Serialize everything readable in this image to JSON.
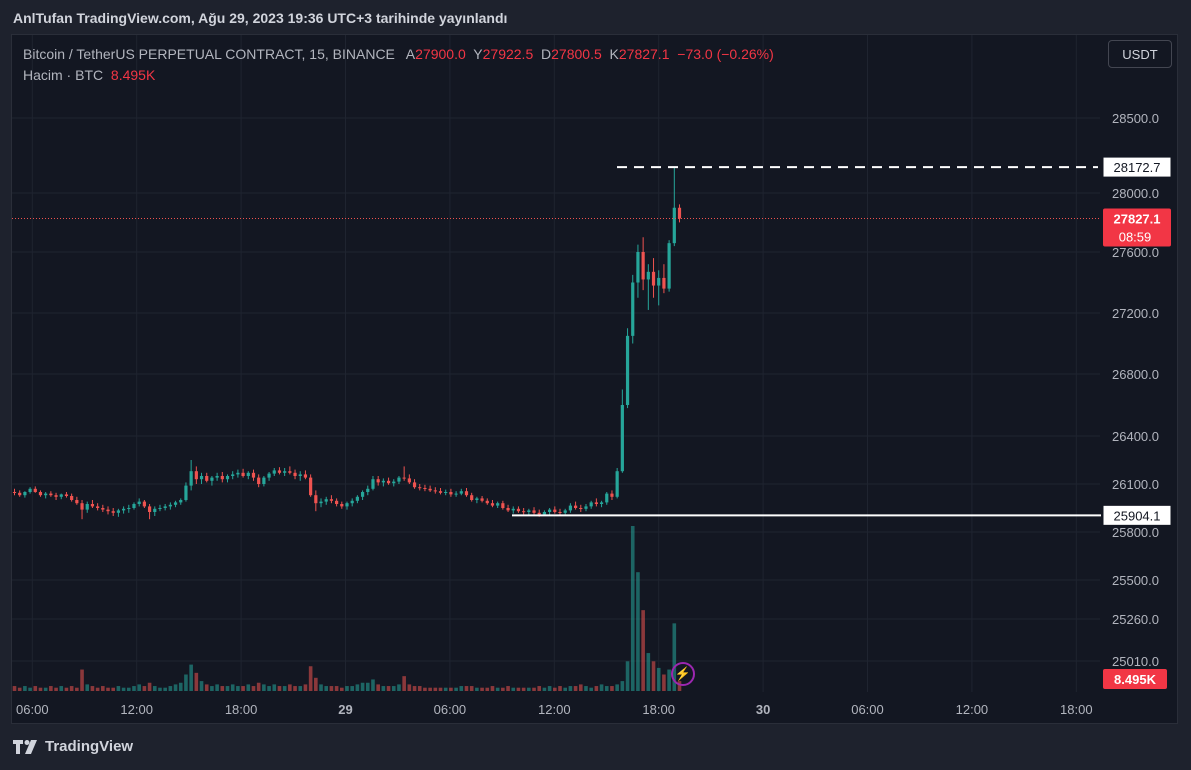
{
  "header": {
    "publisher": "AnlTufan TradingView.com, Ağu 29, 2023 19:36 UTC+3 tarihinde yayınlandı"
  },
  "legend": {
    "symbol": "Bitcoin / TetherUS PERPETUAL CONTRACT, 15, BINANCE",
    "o_label": "A",
    "o_value": "27900.0",
    "h_label": "Y",
    "h_value": "27922.5",
    "l_label": "D",
    "l_value": "27800.5",
    "c_label": "K",
    "c_value": "27827.1",
    "change": "−73.0 (−0.26%)",
    "volume_label": "Hacim · BTC",
    "volume_value": "8.495K"
  },
  "currency_button": "USDT",
  "footer": {
    "brand": "TradingView"
  },
  "colors": {
    "up": "#26a69a",
    "down": "#ef5350",
    "background": "#131722",
    "grid": "#1f2430"
  },
  "icons": [
    "tradingview-logo-icon",
    "lightning-icon"
  ],
  "chart_data": {
    "type": "candlestick",
    "symbol": "BTCUSDT.P",
    "interval_minutes": 15,
    "x_tick_labels": [
      "06:00",
      "12:00",
      "18:00",
      "29",
      "06:00",
      "12:00",
      "18:00",
      "30",
      "06:00",
      "12:00",
      "18:00"
    ],
    "y_tick_labels": [
      "28500.0",
      "28000.0",
      "27600.0",
      "27200.0",
      "26800.0",
      "26400.0",
      "26100.0",
      "25800.0",
      "25500.0",
      "25260.0",
      "25010.0"
    ],
    "price_levels": [
      {
        "label": "28172.7",
        "value": 28172.7,
        "style": "dashed"
      },
      {
        "label": "25904.1",
        "value": 25904.1,
        "style": "solid"
      }
    ],
    "last_price": {
      "value": "27827.1",
      "countdown": "08:59"
    },
    "volume_last": "8.495K",
    "ohlc": [
      [
        26050,
        26070,
        26030,
        26045
      ],
      [
        26045,
        26060,
        26020,
        26030
      ],
      [
        26030,
        26055,
        26015,
        26050
      ],
      [
        26050,
        26080,
        26040,
        26070
      ],
      [
        26070,
        26085,
        26045,
        26050
      ],
      [
        26050,
        26060,
        26020,
        26030
      ],
      [
        26030,
        26050,
        26010,
        26040
      ],
      [
        26040,
        26055,
        26020,
        26030
      ],
      [
        26030,
        26045,
        26000,
        26020
      ],
      [
        26020,
        26040,
        26005,
        26035
      ],
      [
        26035,
        26050,
        26015,
        26025
      ],
      [
        26025,
        26040,
        25990,
        26000
      ],
      [
        26000,
        26020,
        25970,
        25980
      ],
      [
        25980,
        26000,
        25880,
        25940
      ],
      [
        25940,
        25990,
        25920,
        25975
      ],
      [
        25975,
        26000,
        25950,
        25960
      ],
      [
        25960,
        25980,
        25935,
        25950
      ],
      [
        25950,
        25970,
        25925,
        25940
      ],
      [
        25940,
        25960,
        25910,
        25930
      ],
      [
        25930,
        25950,
        25900,
        25920
      ],
      [
        25920,
        25945,
        25895,
        25935
      ],
      [
        25935,
        25960,
        25915,
        25945
      ],
      [
        25945,
        25970,
        25920,
        25950
      ],
      [
        25950,
        25985,
        25940,
        25975
      ],
      [
        25975,
        26010,
        25960,
        25990
      ],
      [
        25990,
        26000,
        25950,
        25960
      ],
      [
        25960,
        25975,
        25880,
        25925
      ],
      [
        25925,
        25960,
        25900,
        25945
      ],
      [
        25945,
        25970,
        25930,
        25950
      ],
      [
        25950,
        25975,
        25935,
        25960
      ],
      [
        25960,
        25985,
        25940,
        25970
      ],
      [
        25970,
        25995,
        25955,
        25985
      ],
      [
        25985,
        26010,
        25970,
        26000
      ],
      [
        26000,
        26110,
        25990,
        26090
      ],
      [
        26090,
        26250,
        26060,
        26180
      ],
      [
        26180,
        26210,
        26100,
        26130
      ],
      [
        26130,
        26170,
        26100,
        26150
      ],
      [
        26150,
        26170,
        26110,
        26120
      ],
      [
        26120,
        26150,
        26090,
        26140
      ],
      [
        26140,
        26170,
        26120,
        26150
      ],
      [
        26150,
        26175,
        26110,
        26130
      ],
      [
        26130,
        26160,
        26110,
        26150
      ],
      [
        26150,
        26180,
        26130,
        26160
      ],
      [
        26160,
        26190,
        26140,
        26170
      ],
      [
        26170,
        26195,
        26140,
        26150
      ],
      [
        26150,
        26180,
        26130,
        26170
      ],
      [
        26170,
        26190,
        26120,
        26140
      ],
      [
        26140,
        26160,
        26080,
        26100
      ],
      [
        26100,
        26150,
        26085,
        26140
      ],
      [
        26140,
        26175,
        26120,
        26165
      ],
      [
        26165,
        26200,
        26150,
        26185
      ],
      [
        26185,
        26205,
        26160,
        26170
      ],
      [
        26170,
        26200,
        26150,
        26180
      ],
      [
        26180,
        26210,
        26160,
        26170
      ],
      [
        26170,
        26190,
        26130,
        26150
      ],
      [
        26150,
        26180,
        26120,
        26160
      ],
      [
        26160,
        26185,
        26130,
        26140
      ],
      [
        26140,
        26160,
        26020,
        26030
      ],
      [
        26030,
        26060,
        25930,
        25980
      ],
      [
        25980,
        26010,
        25955,
        25990
      ],
      [
        25990,
        26020,
        25970,
        26005
      ],
      [
        26005,
        26030,
        25980,
        25995
      ],
      [
        25995,
        26010,
        25960,
        25975
      ],
      [
        25975,
        25990,
        25945,
        25960
      ],
      [
        25960,
        25990,
        25940,
        25980
      ],
      [
        25980,
        26010,
        25960,
        25995
      ],
      [
        25995,
        26030,
        25980,
        26020
      ],
      [
        26020,
        26060,
        26000,
        26050
      ],
      [
        26050,
        26090,
        26030,
        26070
      ],
      [
        26070,
        26150,
        26060,
        26130
      ],
      [
        26130,
        26150,
        26090,
        26110
      ],
      [
        26110,
        26135,
        26085,
        26120
      ],
      [
        26120,
        26140,
        26095,
        26105
      ],
      [
        26105,
        26130,
        26085,
        26115
      ],
      [
        26115,
        26150,
        26100,
        26140
      ],
      [
        26140,
        26210,
        26120,
        26135
      ],
      [
        26135,
        26160,
        26100,
        26110
      ],
      [
        26110,
        26130,
        26070,
        26080
      ],
      [
        26080,
        26100,
        26060,
        26075
      ],
      [
        26075,
        26095,
        26055,
        26070
      ],
      [
        26070,
        26090,
        26050,
        26060
      ],
      [
        26060,
        26080,
        26040,
        26055
      ],
      [
        26055,
        26075,
        26035,
        26045
      ],
      [
        26045,
        26065,
        26030,
        26050
      ],
      [
        26050,
        26070,
        26020,
        26035
      ],
      [
        26035,
        26055,
        26020,
        26040
      ],
      [
        26040,
        26070,
        26030,
        26055
      ],
      [
        26055,
        26075,
        26020,
        26030
      ],
      [
        26030,
        26045,
        25990,
        26000
      ],
      [
        26000,
        26020,
        25980,
        26010
      ],
      [
        26010,
        26025,
        25985,
        25995
      ],
      [
        25995,
        26010,
        25970,
        25980
      ],
      [
        25980,
        26000,
        25955,
        25965
      ],
      [
        25965,
        25990,
        25950,
        25980
      ],
      [
        25980,
        25995,
        25940,
        25950
      ],
      [
        25950,
        25970,
        25925,
        25935
      ],
      [
        25935,
        25960,
        25915,
        25945
      ],
      [
        25945,
        25960,
        25920,
        25930
      ],
      [
        25930,
        25950,
        25910,
        25925
      ],
      [
        25925,
        25945,
        25900,
        25935
      ],
      [
        25935,
        25955,
        25910,
        25920
      ],
      [
        25920,
        25940,
        25895,
        25910
      ],
      [
        25910,
        25935,
        25900,
        25925
      ],
      [
        25925,
        25950,
        25905,
        25940
      ],
      [
        25940,
        25960,
        25915,
        25925
      ],
      [
        25925,
        25945,
        25904,
        25920
      ],
      [
        25920,
        25945,
        25910,
        25935
      ],
      [
        25935,
        25980,
        25920,
        25965
      ],
      [
        25965,
        25990,
        25940,
        25950
      ],
      [
        25950,
        25970,
        25925,
        25945
      ],
      [
        25945,
        25975,
        25930,
        25960
      ],
      [
        25960,
        25995,
        25945,
        25985
      ],
      [
        25985,
        26010,
        25960,
        25975
      ],
      [
        25975,
        25995,
        25955,
        25985
      ],
      [
        25985,
        26050,
        25970,
        26040
      ],
      [
        26040,
        26060,
        26000,
        26020
      ],
      [
        26020,
        26200,
        26010,
        26180
      ],
      [
        26180,
        26700,
        26170,
        26600
      ],
      [
        26600,
        27100,
        26580,
        27050
      ],
      [
        27050,
        27450,
        27000,
        27400
      ],
      [
        27400,
        27650,
        27300,
        27600
      ],
      [
        27600,
        27700,
        27350,
        27420
      ],
      [
        27420,
        27520,
        27220,
        27470
      ],
      [
        27470,
        27560,
        27300,
        27380
      ],
      [
        27380,
        27480,
        27250,
        27430
      ],
      [
        27430,
        27520,
        27330,
        27360
      ],
      [
        27360,
        27680,
        27340,
        27660
      ],
      [
        27660,
        28172.7,
        27640,
        27900
      ],
      [
        27900,
        27922.5,
        27800.5,
        27827.1
      ]
    ],
    "volume_relative": [
      0.03,
      0.02,
      0.03,
      0.02,
      0.03,
      0.02,
      0.02,
      0.03,
      0.02,
      0.03,
      0.02,
      0.03,
      0.02,
      0.13,
      0.04,
      0.03,
      0.02,
      0.03,
      0.02,
      0.02,
      0.03,
      0.02,
      0.02,
      0.03,
      0.04,
      0.03,
      0.05,
      0.03,
      0.02,
      0.02,
      0.03,
      0.04,
      0.05,
      0.1,
      0.16,
      0.11,
      0.06,
      0.04,
      0.03,
      0.04,
      0.03,
      0.03,
      0.04,
      0.03,
      0.03,
      0.04,
      0.03,
      0.05,
      0.04,
      0.03,
      0.04,
      0.03,
      0.03,
      0.04,
      0.03,
      0.03,
      0.04,
      0.15,
      0.08,
      0.04,
      0.03,
      0.03,
      0.03,
      0.02,
      0.03,
      0.03,
      0.04,
      0.05,
      0.05,
      0.07,
      0.04,
      0.03,
      0.03,
      0.03,
      0.04,
      0.09,
      0.04,
      0.03,
      0.03,
      0.02,
      0.02,
      0.02,
      0.02,
      0.02,
      0.02,
      0.02,
      0.03,
      0.03,
      0.03,
      0.02,
      0.02,
      0.02,
      0.03,
      0.02,
      0.02,
      0.03,
      0.02,
      0.02,
      0.02,
      0.02,
      0.02,
      0.03,
      0.02,
      0.03,
      0.02,
      0.03,
      0.02,
      0.03,
      0.03,
      0.04,
      0.03,
      0.02,
      0.03,
      0.04,
      0.03,
      0.03,
      0.04,
      0.06,
      0.18,
      1.0,
      0.72,
      0.49,
      0.23,
      0.18,
      0.14,
      0.1,
      0.13,
      0.41,
      0.06
    ]
  }
}
